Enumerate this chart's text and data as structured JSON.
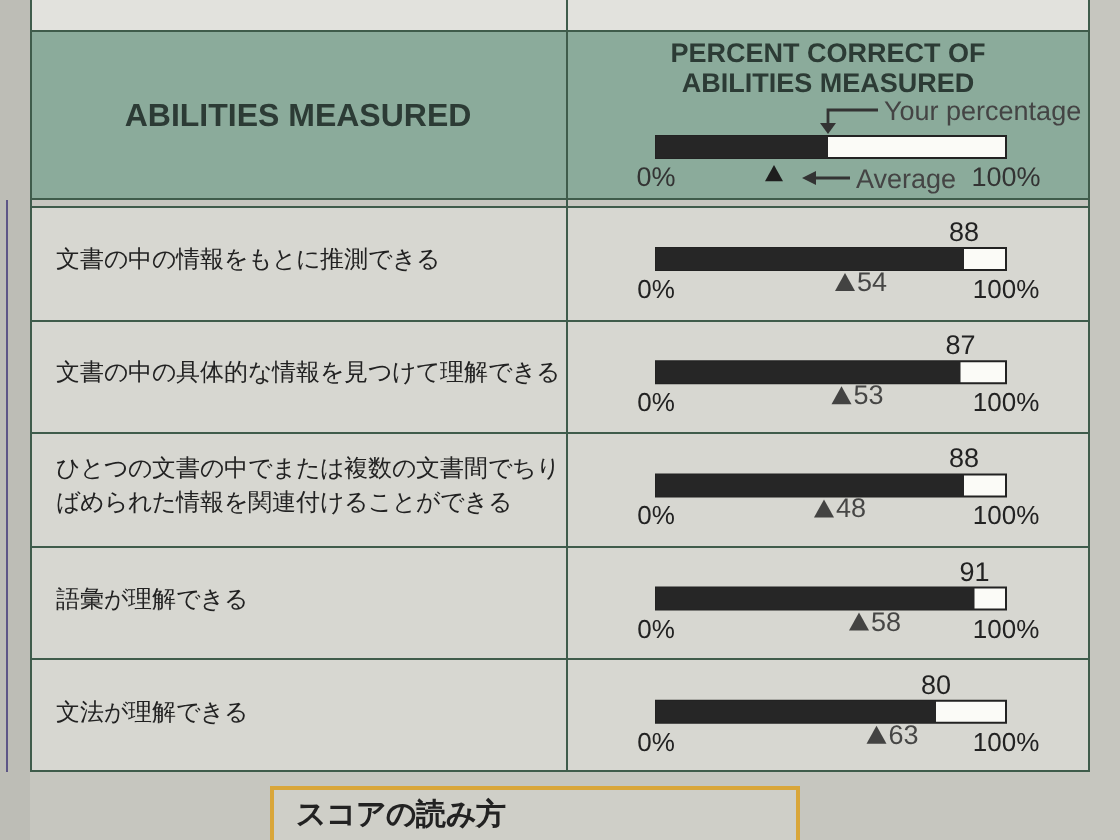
{
  "chart_data": {
    "type": "bar",
    "orientation": "horizontal",
    "title": "PERCENT CORRECT OF ABILITIES MEASURED",
    "ylabel": "ABILITIES MEASURED",
    "categories": [
      "文書の中の情報をもとに推測できる",
      "文書の中の具体的な情報を見つけて理解できる",
      "ひとつの文書の中でまたは複数の文書間でちりばめられた情報を関連付けることができる",
      "語彙が理解できる",
      "文法が理解できる"
    ],
    "series": [
      {
        "name": "Your percentage",
        "color": "#262626",
        "values": [
          88,
          87,
          88,
          91,
          80
        ]
      },
      {
        "name": "Average",
        "type": "scatter",
        "color": "#1e1e1e",
        "values": [
          54,
          53,
          48,
          58,
          63
        ]
      }
    ],
    "xlim": [
      0,
      100
    ],
    "xticks": [
      {
        "value": 0,
        "label": "0%"
      },
      {
        "value": 100,
        "label": "100%"
      }
    ],
    "marker": "triangle",
    "data_labels": true,
    "legend": "top",
    "annotations": [
      "スコアの読み方"
    ]
  }
}
